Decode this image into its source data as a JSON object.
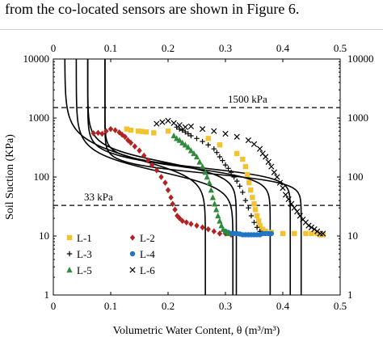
{
  "caption": "from the co-located sensors are shown in Figure 6.",
  "chart_data": {
    "type": "scatter",
    "title": "",
    "xlabel": "Volumetric Water Content, θ (m³/m³)",
    "ylabel": "Soil Suction (KPa)",
    "xlim": [
      0,
      0.5
    ],
    "ylim": [
      1,
      10000
    ],
    "yscale": "log",
    "x_ticks": [
      "0",
      "0.1",
      "0.2",
      "0.3",
      "0.4",
      "0.5"
    ],
    "y_ticks": [
      "1",
      "10",
      "100",
      "1000",
      "10000"
    ],
    "grid": false,
    "legend_position": "bottom-left",
    "reference_lines": [
      {
        "label": "1500 kPa",
        "y": 1500
      },
      {
        "label": "33 kPa",
        "y": 33
      }
    ],
    "series": [
      {
        "name": "L-1",
        "marker": "square",
        "color": "#F2C230",
        "x": [
          0.128,
          0.135,
          0.148,
          0.155,
          0.162,
          0.175,
          0.2,
          0.27,
          0.29,
          0.32,
          0.33,
          0.335,
          0.338,
          0.341,
          0.344,
          0.347,
          0.35,
          0.352,
          0.355,
          0.358,
          0.36,
          0.365,
          0.37,
          0.38,
          0.4,
          0.42,
          0.44,
          0.45,
          0.46,
          0.465,
          0.47
        ],
        "y": [
          650,
          620,
          600,
          590,
          580,
          560,
          600,
          450,
          350,
          250,
          200,
          150,
          110,
          80,
          60,
          45,
          35,
          28,
          22,
          18,
          15,
          13,
          12,
          11.5,
          11,
          11,
          11,
          11,
          11,
          10.5,
          10.5
        ]
      },
      {
        "name": "L-2",
        "marker": "diamond",
        "color": "#B22222",
        "x": [
          0.07,
          0.078,
          0.085,
          0.092,
          0.1,
          0.108,
          0.115,
          0.12,
          0.125,
          0.13,
          0.135,
          0.142,
          0.15,
          0.158,
          0.165,
          0.172,
          0.18,
          0.188,
          0.195,
          0.2,
          0.205,
          0.208,
          0.212,
          0.216,
          0.22,
          0.225,
          0.232,
          0.24,
          0.25,
          0.26,
          0.27,
          0.28,
          0.29,
          0.3,
          0.31
        ],
        "y": [
          550,
          560,
          540,
          600,
          650,
          620,
          570,
          520,
          480,
          420,
          380,
          330,
          280,
          230,
          190,
          160,
          130,
          100,
          80,
          60,
          45,
          35,
          28,
          22,
          20,
          18,
          17,
          16,
          15,
          14,
          13,
          12,
          11,
          11,
          10.5
        ]
      },
      {
        "name": "L-3",
        "marker": "plus",
        "color": "#000000",
        "x": [
          0.215,
          0.22,
          0.225,
          0.23,
          0.235,
          0.24,
          0.25,
          0.26,
          0.27,
          0.28,
          0.285,
          0.29,
          0.295,
          0.3,
          0.305,
          0.31,
          0.315,
          0.32,
          0.325,
          0.33,
          0.335,
          0.34,
          0.345,
          0.35,
          0.355,
          0.36,
          0.365
        ],
        "y": [
          700,
          650,
          620,
          580,
          540,
          500,
          450,
          400,
          350,
          300,
          260,
          220,
          190,
          160,
          140,
          120,
          100,
          85,
          70,
          55,
          40,
          30,
          22,
          17,
          14,
          12,
          11
        ]
      },
      {
        "name": "L-4",
        "marker": "circle",
        "color": "#1F77C4",
        "x": [
          0.3,
          0.305,
          0.31,
          0.315,
          0.32,
          0.325,
          0.33,
          0.335,
          0.34,
          0.345,
          0.35,
          0.355,
          0.36,
          0.365,
          0.37,
          0.375,
          0.38
        ],
        "y": [
          12,
          11.5,
          11,
          11,
          11,
          10.8,
          10.5,
          10.5,
          10.5,
          10.5,
          10.5,
          10.5,
          10.5,
          11,
          11,
          11,
          11
        ]
      },
      {
        "name": "L-5",
        "marker": "triangle",
        "color": "#2E8B3A",
        "x": [
          0.21,
          0.215,
          0.22,
          0.225,
          0.23,
          0.235,
          0.24,
          0.245,
          0.25,
          0.255,
          0.26,
          0.265,
          0.268,
          0.272,
          0.275,
          0.278,
          0.281,
          0.284,
          0.287,
          0.29,
          0.293,
          0.296,
          0.3,
          0.305
        ],
        "y": [
          500,
          450,
          420,
          380,
          350,
          320,
          280,
          250,
          220,
          180,
          150,
          120,
          100,
          80,
          60,
          45,
          35,
          28,
          22,
          18,
          15,
          13,
          12,
          11
        ]
      },
      {
        "name": "L-6",
        "marker": "x",
        "color": "#000000",
        "x": [
          0.18,
          0.19,
          0.2,
          0.21,
          0.22,
          0.23,
          0.24,
          0.26,
          0.28,
          0.3,
          0.32,
          0.34,
          0.35,
          0.36,
          0.365,
          0.37,
          0.375,
          0.38,
          0.385,
          0.39,
          0.395,
          0.4,
          0.405,
          0.41,
          0.415,
          0.42,
          0.425,
          0.43,
          0.435,
          0.44,
          0.445,
          0.45,
          0.455,
          0.46,
          0.465,
          0.47
        ],
        "y": [
          800,
          850,
          900,
          820,
          760,
          700,
          720,
          650,
          600,
          540,
          480,
          420,
          360,
          300,
          250,
          220,
          180,
          150,
          120,
          100,
          80,
          65,
          50,
          42,
          35,
          30,
          26,
          22,
          19,
          17,
          15,
          14,
          13,
          12,
          11,
          11
        ]
      }
    ],
    "fitted_curves": [
      {
        "theta_r": 0.02,
        "theta_s": 0.265,
        "alpha": 0.0061,
        "n": 2.85
      },
      {
        "theta_r": 0.04,
        "theta_s": 0.313,
        "alpha": 0.0092,
        "n": 3.2
      },
      {
        "theta_r": 0.06,
        "theta_s": 0.319,
        "alpha": 0.0062,
        "n": 3.7
      },
      {
        "theta_r": 0.06,
        "theta_s": 0.378,
        "alpha": 0.0072,
        "n": 4.3
      },
      {
        "theta_r": 0.09,
        "theta_s": 0.413,
        "alpha": 0.0073,
        "n": 5.2
      },
      {
        "theta_r": 0.09,
        "theta_s": 0.432,
        "alpha": 0.009,
        "n": 5.5
      }
    ]
  }
}
